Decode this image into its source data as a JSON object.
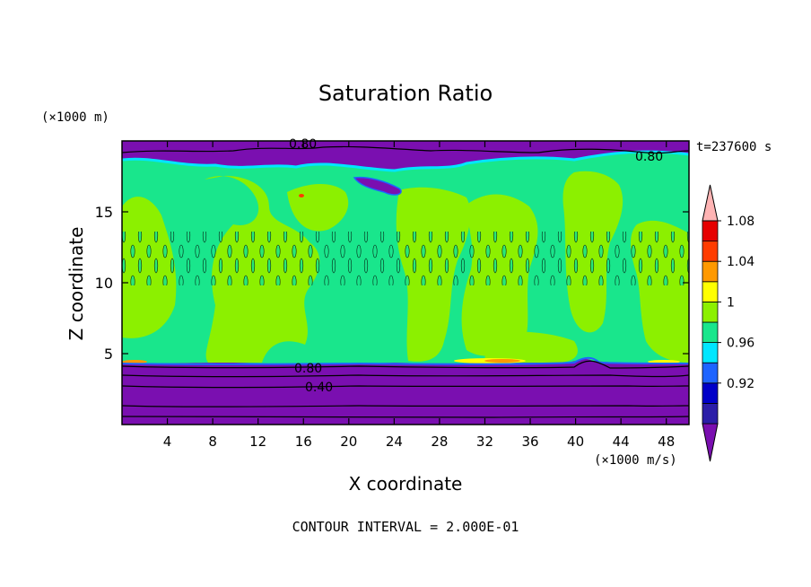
{
  "chart_data": {
    "type": "heatmap",
    "title": "Saturation Ratio",
    "xlabel": "X coordinate",
    "ylabel": "Z coordinate",
    "x_unit": "(×1000 m/s)",
    "y_unit": "(×1000 m)",
    "time_label": "t=237600 s",
    "footer": "CONTOUR INTERVAL = 2.000E-01",
    "xlim": [
      0,
      50
    ],
    "ylim": [
      0,
      20
    ],
    "x_ticks": [
      4,
      8,
      12,
      16,
      20,
      24,
      28,
      32,
      36,
      40,
      44,
      48
    ],
    "y_ticks": [
      5,
      10,
      15
    ],
    "colorbar": {
      "levels": [
        0.92,
        0.96,
        1,
        1.04,
        1.08
      ],
      "tick_labels": [
        "0.92",
        "0.96",
        "1",
        "1.04",
        "1.08"
      ],
      "colors": [
        "#7a0fb0",
        "#2b1ea8",
        "#0000c8",
        "#1e64ff",
        "#00e6ff",
        "#19e68c",
        "#8cf000",
        "#ffff00",
        "#ff9900",
        "#ff3c00",
        "#e60000",
        "#ffb4b4"
      ]
    },
    "contour_labels": [
      {
        "text": "0.80",
        "x": 16.2,
        "z": 19.8
      },
      {
        "text": "0.80",
        "x": 46.2,
        "z": 18.9
      },
      {
        "text": "0.80",
        "x": 17.0,
        "z": 4.0
      },
      {
        "text": "0.40",
        "x": 17.0,
        "z": 2.6
      }
    ],
    "regions": {
      "upper_dry_layer": {
        "z_from": 18.4,
        "z_to": 20,
        "value": "< 0.92"
      },
      "cloud_layer": {
        "z_from": 4.4,
        "z_to": 18.4,
        "value": "0.96 - 1.04"
      },
      "lower_dry_layer": {
        "z_from": 0,
        "z_to": 4.4,
        "value": "< 0.92"
      }
    }
  }
}
